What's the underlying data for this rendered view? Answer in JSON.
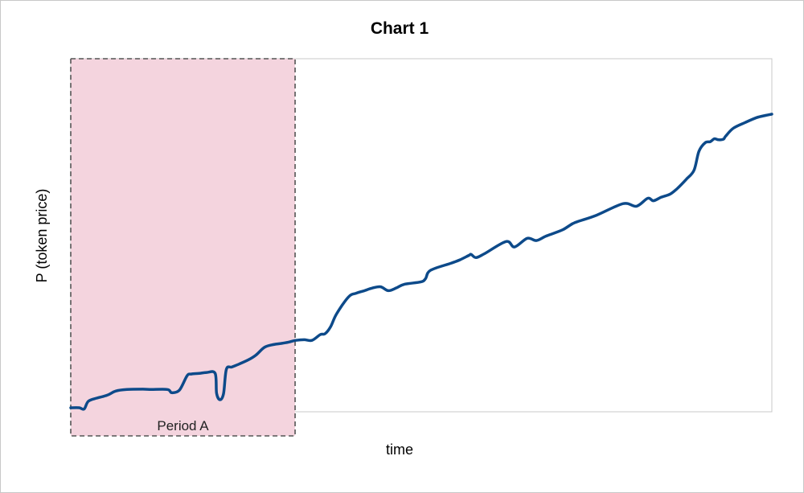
{
  "chart_data": {
    "type": "line",
    "title": "Chart 1",
    "xlabel": "time",
    "ylabel": "P  (token price)",
    "xlim": [
      0,
      100
    ],
    "ylim": [
      0,
      100
    ],
    "grid": false,
    "highlight": {
      "label": "Period A",
      "x_start": 0,
      "x_end": 32,
      "color": "#f4d4de",
      "border_color": "#555555"
    },
    "series": [
      {
        "color": "#0d4a8a",
        "x": [
          0,
          1.2,
          1.9,
          2.5,
          3.7,
          5.2,
          6.4,
          8.0,
          10.3,
          11.5,
          13.8,
          14.4,
          15.5,
          16.6,
          17.2,
          18.3,
          19.4,
          20.6,
          20.8,
          21.3,
          21.8,
          22.2,
          23.0,
          24.1,
          25.3,
          26.4,
          27.6,
          28.7,
          29.9,
          31.0,
          32.1,
          33.3,
          34.4,
          35.6,
          36.3,
          37.1,
          37.9,
          39.6,
          40.7,
          41.9,
          43.0,
          44.2,
          45.3,
          46.5,
          47.6,
          49.9,
          50.6,
          51.3,
          54.3,
          55.5,
          56.8,
          57.1,
          57.8,
          59.0,
          62.1,
          63.3,
          65.1,
          66.4,
          67.6,
          68.3,
          70.2,
          71.6,
          72.7,
          75.0,
          78.8,
          80.7,
          82.3,
          83.1,
          84.2,
          85.5,
          86.5,
          87.8,
          88.9,
          89.6,
          90.5,
          91.2,
          91.8,
          92.4,
          93.1,
          93.4,
          94.5,
          96.2,
          97.8,
          99.1,
          100
        ],
        "values": [
          0.5,
          0.5,
          0.1,
          2.5,
          3.5,
          4.4,
          5.7,
          6.2,
          6.3,
          6.2,
          6.2,
          5.2,
          6.0,
          10.5,
          11.0,
          11.2,
          11.5,
          11.2,
          5.0,
          3.0,
          5.0,
          12.5,
          13.2,
          14.2,
          15.4,
          16.9,
          19.3,
          20.1,
          20.5,
          20.9,
          21.5,
          21.7,
          21.5,
          23.3,
          23.6,
          25.9,
          29.7,
          35.0,
          36.2,
          37.0,
          37.8,
          38.2,
          37.0,
          37.9,
          39.0,
          39.7,
          40.7,
          43.3,
          45.6,
          46.6,
          48.0,
          48.3,
          47.3,
          48.5,
          52.3,
          50.6,
          53.3,
          52.6,
          53.8,
          54.4,
          56.0,
          57.9,
          58.8,
          60.5,
          64.1,
          63.3,
          65.8,
          65.0,
          66.1,
          67.1,
          68.8,
          71.7,
          74.5,
          80.4,
          83.1,
          83.4,
          84.3,
          84.0,
          84.2,
          85.1,
          87.6,
          89.4,
          90.9,
          91.6,
          92.0
        ]
      }
    ]
  }
}
